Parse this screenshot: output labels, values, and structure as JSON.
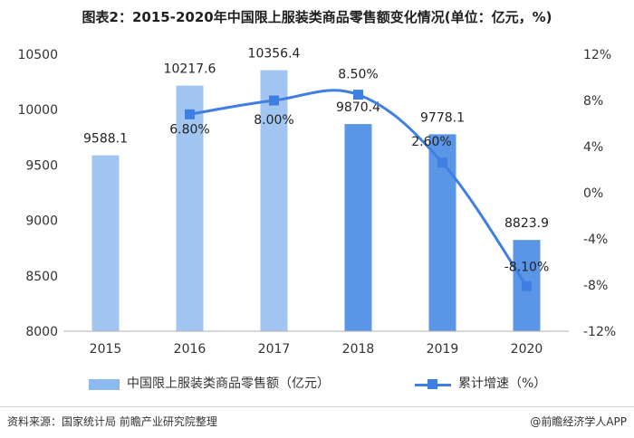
{
  "title": "图表2：2015-2020年中国限上服装类商品零售额变化情况(单位：亿元，%)",
  "footer": {
    "source": "资料来源：国家统计局 前瞻产业研究院整理",
    "brand": "@前瞻经济学人APP"
  },
  "colors": {
    "bar_light": "#a2c6f1",
    "bar_dark": "#5b96e6",
    "line": "#3f7fe1",
    "axis": "#b0b0b0"
  },
  "chart_data": {
    "type": "bar+line",
    "categories": [
      "2015",
      "2016",
      "2017",
      "2018",
      "2019",
      "2020"
    ],
    "series": [
      {
        "name": "中国限上服装类商品零售额（亿元）",
        "type": "bar",
        "axis": "left",
        "values": [
          9588.1,
          10217.6,
          10356.4,
          9870.4,
          9778.1,
          8823.9
        ],
        "labels": [
          "9588.1",
          "10217.6",
          "10356.4",
          "9870.4",
          "9778.1",
          "8823.9"
        ]
      },
      {
        "name": "累计增速（%）",
        "type": "line",
        "axis": "right",
        "values": [
          null,
          6.8,
          8.0,
          8.5,
          2.6,
          -8.1
        ],
        "labels": [
          "",
          "6.80%",
          "8.00%",
          "8.50%",
          "2.60%",
          "-8.10%"
        ]
      }
    ],
    "y_left": {
      "min": 8000,
      "max": 10500,
      "ticks": [
        "8000",
        "8500",
        "9000",
        "9500",
        "10000",
        "10500"
      ]
    },
    "y_right": {
      "min": -12,
      "max": 12,
      "ticks": [
        "-12%",
        "-8%",
        "-4%",
        "0%",
        "4%",
        "8%",
        "12%"
      ]
    },
    "legend": "bottom"
  }
}
